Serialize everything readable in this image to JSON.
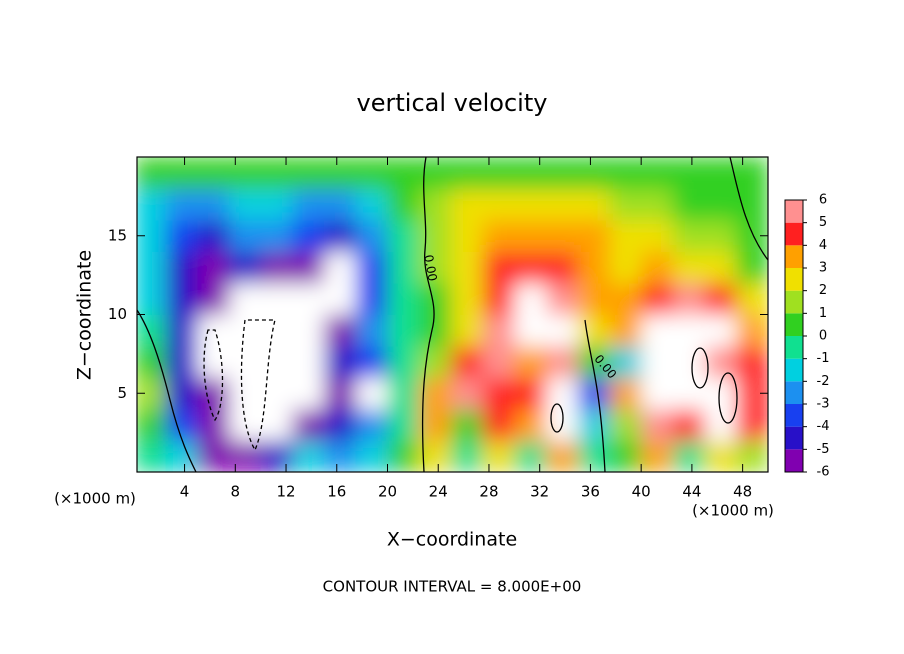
{
  "chart_data": {
    "type": "contour",
    "title": "vertical velocity",
    "xlabel": "X−coordinate",
    "ylabel": "Z−coordinate",
    "x_unit_labels": [
      "(×1000 m)",
      "(×1000 m)"
    ],
    "footer": "CONTOUR INTERVAL = 8.000E+00",
    "annotations": [
      "0.00",
      "0.00"
    ],
    "xlim": [
      0.25,
      50
    ],
    "ylim": [
      0,
      20
    ],
    "xticks": [
      4,
      8,
      12,
      16,
      20,
      24,
      28,
      32,
      36,
      40,
      44,
      48
    ],
    "yticks": [
      5,
      10,
      15
    ],
    "x": [
      1.25,
      3.75,
      6.25,
      8.75,
      11.25,
      13.75,
      16.25,
      18.75,
      21.25,
      23.75,
      26.25,
      28.75,
      31.25,
      33.75,
      36.25,
      38.75,
      41.25,
      43.75,
      46.25,
      48.75
    ],
    "y": [
      1,
      3,
      5,
      7,
      9,
      11,
      13,
      15,
      17,
      19
    ],
    "values": [
      [
        0,
        -1.5,
        -5,
        -6,
        -4,
        -1,
        -2,
        -1,
        0.5,
        3,
        -0.5,
        3,
        0,
        4,
        -0.5,
        1,
        4,
        0,
        3,
        2
      ],
      [
        0.5,
        -3,
        -5.5,
        -9,
        -9,
        -5,
        -4,
        -2,
        0,
        4,
        1,
        5,
        4,
        8,
        -1,
        2,
        6,
        5,
        8,
        5
      ],
      [
        1.5,
        -4,
        -5,
        -9,
        -9,
        -9,
        -5,
        -9,
        -0.5,
        4,
        5.5,
        5,
        5,
        7,
        -3,
        4,
        8,
        8,
        9,
        5
      ],
      [
        0.5,
        -4,
        -9,
        -9,
        -9,
        -9,
        -4.5,
        -3,
        0,
        2,
        5,
        6,
        4,
        6,
        1,
        -1,
        7,
        9,
        6,
        5
      ],
      [
        -0.5,
        -4,
        -9,
        -9,
        -9,
        -9,
        -5,
        -2.5,
        -0.5,
        1,
        3,
        6,
        8,
        6.5,
        3,
        4,
        8,
        8,
        7,
        4
      ],
      [
        -1,
        -4,
        -5,
        -9,
        -7,
        -9,
        -9,
        -3,
        -0.5,
        1,
        2.5,
        5,
        7,
        6,
        4,
        3.5,
        5,
        5.5,
        5,
        3
      ],
      [
        -1.5,
        -4.5,
        -5,
        -4,
        -5,
        -5.5,
        -9,
        -3,
        -0.5,
        1.5,
        3,
        4.5,
        4.8,
        4.5,
        3.5,
        3,
        3.5,
        3,
        2.5,
        1
      ],
      [
        -1.5,
        -3.5,
        -4,
        -2.5,
        -2,
        -3.5,
        -4,
        -2,
        0,
        2,
        3,
        3.5,
        4,
        4,
        3.5,
        3,
        2.5,
        2,
        1.5,
        0.5
      ],
      [
        -1,
        -2.5,
        -2.5,
        -1.5,
        -1,
        -2,
        -2.5,
        -1,
        0.3,
        1.5,
        2.5,
        2.8,
        3,
        2.8,
        2.5,
        2,
        1.5,
        1,
        0.5,
        0.3
      ],
      [
        0.5,
        0.5,
        0.5,
        0.5,
        0.5,
        0.5,
        0.5,
        0.5,
        0.5,
        0.5,
        0.8,
        1,
        1,
        1,
        0.8,
        0.5,
        0.5,
        0.5,
        0.5,
        0.5
      ]
    ],
    "colorbar": {
      "ticks": [
        -6,
        -5,
        -4,
        -3,
        -2,
        -1,
        0,
        1,
        2,
        3,
        4,
        5,
        6
      ],
      "colors": [
        "#8000b0",
        "#2810c8",
        "#1840f0",
        "#1c90f0",
        "#00d0e0",
        "#10e090",
        "#30d020",
        "#a0e020",
        "#f0e000",
        "#ffa000",
        "#ff2020",
        "#ff9090"
      ]
    }
  }
}
